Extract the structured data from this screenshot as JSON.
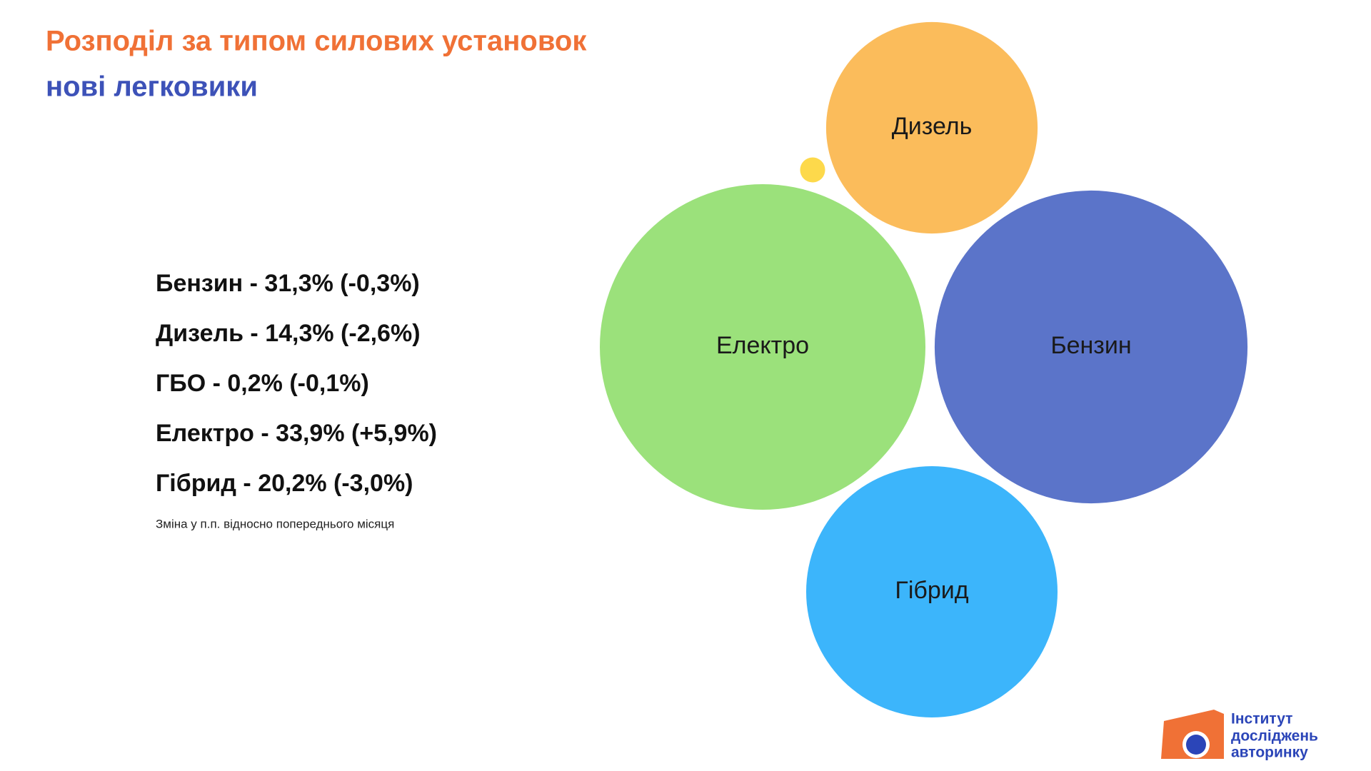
{
  "chart_data": {
    "type": "bubble",
    "title": "Розподіл за типом силових установок",
    "subtitle": "нові легковики",
    "categories": [
      "Бензин",
      "Дизель",
      "ГБО",
      "Електро",
      "Гібрид"
    ],
    "values": [
      31.3,
      14.3,
      0.2,
      33.9,
      20.2
    ],
    "value_labels": [
      "Бензин - 31,3% (-0,3%)",
      "Дизель - 14,3% (-2,6%)",
      "ГБО - 0,2% (-0,1%)",
      "Електро - 33,9% (+5,9%)",
      "Гібрид - 20,2% (-3,0%)"
    ],
    "colors": [
      "#5b74c9",
      "#fbbc5b",
      "#fdd94b",
      "#9be17b",
      "#3cb5fb"
    ],
    "note": "Зміна у п.п. відносно попереднього місяця"
  },
  "logo": [
    "Інститут",
    "досліджень",
    "авторинку"
  ]
}
